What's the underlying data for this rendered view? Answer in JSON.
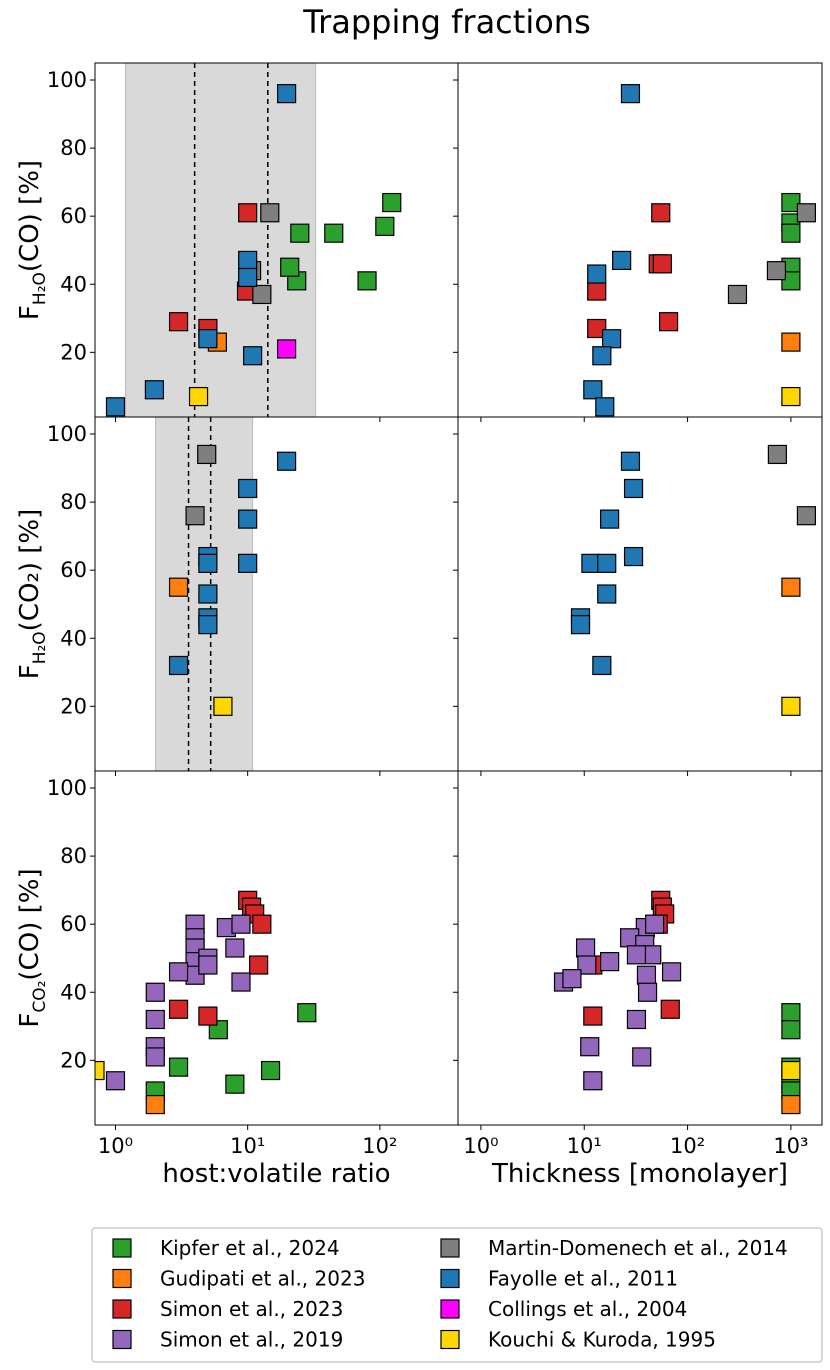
{
  "chart_data": {
    "type": "scatter",
    "title": "Trapping fractions",
    "xscale": "log",
    "legend": [
      {
        "name": "Kipfer et al., 2024",
        "color": "#2ca02c"
      },
      {
        "name": "Gudipati et al., 2023",
        "color": "#ff7f0e"
      },
      {
        "name": "Simon et al., 2023",
        "color": "#d62728"
      },
      {
        "name": "Simon et al., 2019",
        "color": "#9467bd"
      },
      {
        "name": "Martin-Domenech et al., 2014",
        "color": "#7f7f7f"
      },
      {
        "name": "Fayolle et al., 2011",
        "color": "#1f77b4"
      },
      {
        "name": "Collings et al., 2004",
        "color": "#ff00ff"
      },
      {
        "name": "Kouchi & Kuroda, 1995",
        "color": "#ffd700"
      }
    ],
    "columns": [
      {
        "xlabel": "host:volatile ratio",
        "xlim": [
          0.7,
          390
        ],
        "xticks": [
          {
            "value": 1,
            "label": "10⁰"
          },
          {
            "value": 10,
            "label": "10¹"
          },
          {
            "value": 100,
            "label": "10²"
          }
        ]
      },
      {
        "xlabel": "Thickness [monolayer]",
        "xlim": [
          0.6,
          2000
        ],
        "xticks": [
          {
            "value": 1,
            "label": "10⁰"
          },
          {
            "value": 10,
            "label": "10¹"
          },
          {
            "value": 100,
            "label": "10²"
          },
          {
            "value": 1000,
            "label": "10³"
          }
        ]
      }
    ],
    "rows": [
      {
        "ylabel": [
          "F",
          "H₂O",
          "(CO) [%]"
        ],
        "ylim": [
          1,
          105
        ],
        "yticks": [
          20,
          40,
          60,
          80,
          100
        ]
      },
      {
        "ylabel": [
          "F",
          "H₂O",
          "(CO₂) [%]"
        ],
        "ylim": [
          1,
          105
        ],
        "yticks": [
          20,
          40,
          60,
          80,
          100
        ]
      },
      {
        "ylabel": [
          "F",
          "CO₂",
          "(CO) [%]"
        ],
        "ylim": [
          1,
          105
        ],
        "yticks": [
          20,
          40,
          60,
          80,
          100
        ]
      }
    ],
    "panels": [
      {
        "shade": [
          1.19,
          32.7
        ],
        "vlines": [
          3.97,
          14.2
        ],
        "series": [
          {
            "x": [
              123,
              109,
              80,
              44.8,
              24.8,
              23.5,
              20.8
            ],
            "y": [
              64,
              57,
              41,
              55,
              55,
              41,
              45
            ]
          },
          {
            "x": [
              5.9
            ],
            "y": [
              23
            ]
          },
          {
            "x": [
              10,
              9.8,
              5.0,
              3.0
            ],
            "y": [
              61,
              38,
              27,
              29
            ]
          },
          {
            "x": [],
            "y": []
          },
          {
            "x": [
              14.7,
              10.7,
              12.8
            ],
            "y": [
              61,
              44,
              37
            ]
          },
          {
            "x": [
              19.7,
              10,
              10,
              5.0,
              10.9,
              1.97,
              1.0
            ],
            "y": [
              96,
              47,
              42,
              24,
              19,
              9,
              4
            ]
          },
          {
            "x": [
              19.7
            ],
            "y": [
              21
            ]
          },
          {
            "x": [
              4.25
            ],
            "y": [
              7
            ]
          }
        ]
      },
      {
        "series": [
          {
            "x": [
              1000,
              1000,
              1000,
              1000,
              1000
            ],
            "y": [
              64,
              58,
              55,
              45,
              41
            ]
          },
          {
            "x": [
              1000
            ],
            "y": [
              23
            ]
          },
          {
            "x": [
              55,
              52,
              57,
              65.5,
              13.2,
              13.2
            ],
            "y": [
              61,
              46,
              46,
              29,
              38,
              27
            ]
          },
          {
            "x": [],
            "y": []
          },
          {
            "x": [
              1413,
              724,
              304
            ],
            "y": [
              61,
              44,
              37
            ]
          },
          {
            "x": [
              28,
              23,
              13.2,
              18.4,
              14.8,
              12.1,
              15.8
            ],
            "y": [
              96,
              47,
              43,
              24,
              19,
              9,
              4
            ]
          },
          {
            "x": [],
            "y": []
          },
          {
            "x": [
              1000
            ],
            "y": [
              7
            ]
          }
        ]
      },
      {
        "shade": [
          2.01,
          10.9
        ],
        "vlines": [
          3.57,
          5.25
        ],
        "series": [
          {
            "x": [],
            "y": []
          },
          {
            "x": [
              3.0
            ],
            "y": [
              55
            ]
          },
          {
            "x": [],
            "y": []
          },
          {
            "x": [],
            "y": []
          },
          {
            "x": [
              4.9,
              4.0
            ],
            "y": [
              94,
              76
            ]
          },
          {
            "x": [
              19.7,
              10,
              10,
              10,
              5.0,
              5.0,
              5.0,
              5.0,
              5.0,
              3.0
            ],
            "y": [
              92,
              84,
              75,
              62,
              64,
              62,
              53,
              46,
              44,
              32
            ]
          },
          {
            "x": [],
            "y": []
          },
          {
            "x": [
              6.5
            ],
            "y": [
              20
            ]
          }
        ]
      },
      {
        "series": [
          {
            "x": [],
            "y": []
          },
          {
            "x": [
              1000
            ],
            "y": [
              55
            ]
          },
          {
            "x": [],
            "y": []
          },
          {
            "x": [],
            "y": []
          },
          {
            "x": [
              740,
              1413
            ],
            "y": [
              94,
              76
            ]
          },
          {
            "x": [
              28,
              30,
              17.6,
              11.6,
              16.5,
              30,
              16.5,
              9.2,
              9.2,
              14.8
            ],
            "y": [
              92,
              84,
              75,
              62,
              62,
              64,
              53,
              46,
              44,
              32
            ]
          },
          {
            "x": [],
            "y": []
          },
          {
            "x": [
              1000
            ],
            "y": [
              20
            ]
          }
        ]
      },
      {
        "series": [
          {
            "x": [
              28,
              6.0,
              14.9,
              3.0,
              8.0,
              2.0
            ],
            "y": [
              34,
              29,
              17,
              18,
              13,
              11
            ]
          },
          {
            "x": [
              2.0
            ],
            "y": [
              7
            ]
          },
          {
            "x": [
              10,
              10.7,
              11.3,
              12.8,
              12.1,
              3.0,
              5.0
            ],
            "y": [
              67,
              65,
              63,
              60,
              48,
              35,
              33
            ]
          },
          {
            "x": [
              4.0,
              4.0,
              4.0,
              4.0,
              4.0,
              3.0,
              5.0,
              5.0,
              6.9,
              8.9,
              8.0,
              8.9,
              2.0,
              2.0,
              2.0,
              2.0,
              1.0
            ],
            "y": [
              60,
              56,
              53,
              49,
              45,
              46,
              50,
              48,
              59,
              60,
              53,
              43,
              40,
              32,
              24,
              21,
              14
            ]
          },
          {
            "x": [],
            "y": []
          },
          {
            "x": [],
            "y": []
          },
          {
            "x": [],
            "y": []
          },
          {
            "x": [
              0.7
            ],
            "y": [
              17
            ]
          }
        ]
      },
      {
        "series": [
          {
            "x": [
              1000,
              1000,
              1000,
              1000,
              1000
            ],
            "y": [
              34,
              29,
              18,
              13,
              11
            ]
          },
          {
            "x": [
              1000
            ],
            "y": [
              7
            ]
          },
          {
            "x": [
              55,
              57,
              60,
              52,
              12.1,
              68,
              12.1
            ],
            "y": [
              67,
              65,
              63,
              60,
              48,
              35,
              33
            ]
          },
          {
            "x": [
              39,
              48,
              27.5,
              38.5,
              45,
              40,
              41,
              70,
              32,
              17.6,
              10.3,
              10.6,
              6.3,
              7.6,
              32,
              36,
              11.3,
              12.1
            ],
            "y": [
              59,
              60,
              56,
              54,
              51,
              45,
              40,
              46,
              51,
              49,
              53,
              48,
              43,
              44,
              32,
              21,
              24,
              14
            ]
          },
          {
            "x": [],
            "y": []
          },
          {
            "x": [],
            "y": []
          },
          {
            "x": [],
            "y": []
          },
          {
            "x": [
              1000
            ],
            "y": [
              17
            ]
          }
        ]
      }
    ]
  }
}
